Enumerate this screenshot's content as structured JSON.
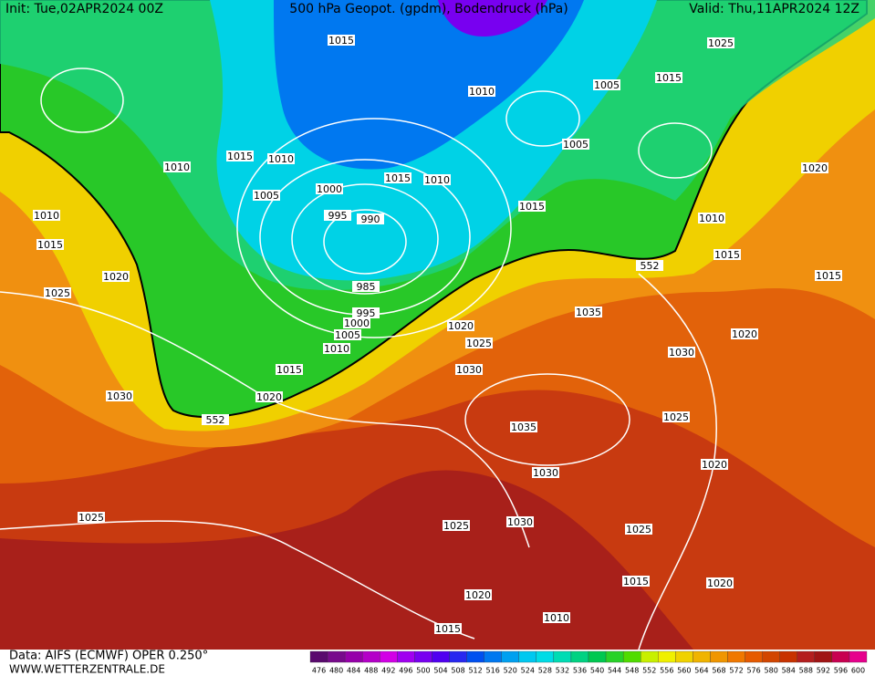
{
  "header": {
    "init": "Init: Tue,02APR2024 00Z",
    "title": "500 hPa Geopot. (gpdm), Bodendruck (hPa)",
    "valid": "Valid: Thu,11APR2024 12Z"
  },
  "footer": {
    "source": "Data: AIFS (ECMWF) OPER 0.250°",
    "website": "WWW.WETTERZENTRALE.DE"
  },
  "colorbar": {
    "labels": [
      476,
      480,
      484,
      488,
      492,
      496,
      500,
      504,
      508,
      512,
      516,
      520,
      524,
      528,
      532,
      536,
      540,
      544,
      548,
      552,
      556,
      560,
      564,
      568,
      572,
      576,
      580,
      584,
      588,
      592,
      596,
      600
    ],
    "colors": [
      "#5a0a6e",
      "#780a8c",
      "#9600aa",
      "#b400c8",
      "#d200e6",
      "#a000f0",
      "#7800f0",
      "#5000f0",
      "#2828f0",
      "#0050f0",
      "#0078f0",
      "#00a0f0",
      "#00c8f0",
      "#00dce6",
      "#00dcb4",
      "#00d282",
      "#00c850",
      "#28d228",
      "#50dc00",
      "#c8f000",
      "#f0f000",
      "#f0d200",
      "#f0b400",
      "#f09600",
      "#f07800",
      "#e65a00",
      "#d24600",
      "#c83200",
      "#b41e1e",
      "#a01414",
      "#c80050",
      "#e6008c"
    ]
  },
  "isobar_labels": [
    1015,
    1025,
    1010,
    1005,
    1015,
    1010,
    1015,
    1010,
    1005,
    1005,
    1000,
    1015,
    1010,
    995,
    990,
    1015,
    1010,
    1020,
    1010,
    1015,
    1020,
    1015,
    1015,
    1025,
    985,
    995,
    1000,
    1005,
    1010,
    1035,
    1020,
    1025,
    1020,
    1030,
    1030,
    1015,
    1020,
    1030,
    552,
    552,
    1025,
    1035,
    1020,
    1030,
    1025,
    1025,
    1030,
    1025,
    1015,
    1020,
    1020,
    1010,
    1015
  ]
}
